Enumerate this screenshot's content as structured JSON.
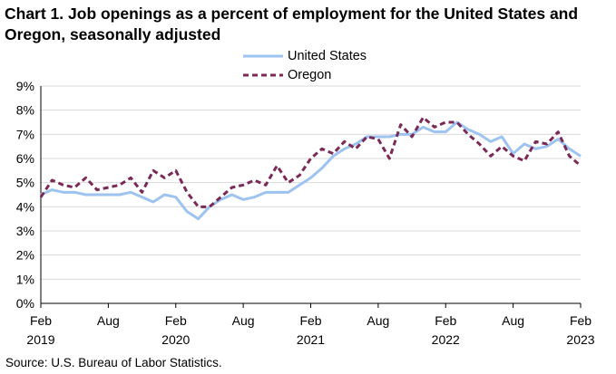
{
  "title": "Chart 1. Job openings as a percent of employment for the United States and Oregon, seasonally adjusted",
  "source": "Source: U.S. Bureau of Labor Statistics.",
  "colors": {
    "us": "#9dc3f0",
    "oregon": "#7b2956",
    "grid": "#d9d9d9",
    "axis": "#000000"
  },
  "chart_data": {
    "type": "line",
    "title": "Chart 1. Job openings as a percent of employment for the United States and Oregon, seasonally adjusted",
    "xlabel": "",
    "ylabel": "",
    "ylim": [
      0,
      9
    ],
    "grid": true,
    "legend_position": "top-center",
    "y_ticks": [
      "0%",
      "1%",
      "2%",
      "3%",
      "4%",
      "5%",
      "6%",
      "7%",
      "8%",
      "9%"
    ],
    "x_ticks": [
      {
        "month": "Feb",
        "year": "2019",
        "index": 0
      },
      {
        "month": "Aug",
        "year": "",
        "index": 6
      },
      {
        "month": "Feb",
        "year": "2020",
        "index": 12
      },
      {
        "month": "Aug",
        "year": "",
        "index": 18
      },
      {
        "month": "Feb",
        "year": "2021",
        "index": 24
      },
      {
        "month": "Aug",
        "year": "",
        "index": 30
      },
      {
        "month": "Feb",
        "year": "2022",
        "index": 36
      },
      {
        "month": "Aug",
        "year": "",
        "index": 42
      },
      {
        "month": "Feb",
        "year": "2023",
        "index": 48
      }
    ],
    "x_range": [
      0,
      48
    ],
    "series": [
      {
        "name": "United States",
        "style": "solid",
        "values": [
          4.5,
          4.7,
          4.6,
          4.6,
          4.5,
          4.5,
          4.5,
          4.5,
          4.6,
          4.4,
          4.2,
          4.5,
          4.4,
          3.8,
          3.5,
          4.0,
          4.3,
          4.5,
          4.3,
          4.4,
          4.6,
          4.6,
          4.6,
          4.9,
          5.2,
          5.6,
          6.1,
          6.4,
          6.6,
          6.9,
          6.9,
          6.9,
          7.0,
          7.0,
          7.3,
          7.1,
          7.1,
          7.5,
          7.2,
          7.0,
          6.7,
          6.9,
          6.2,
          6.6,
          6.4,
          6.5,
          6.8,
          6.4,
          6.1
        ]
      },
      {
        "name": "Oregon",
        "style": "dashed",
        "values": [
          4.4,
          5.1,
          4.9,
          4.8,
          5.2,
          4.7,
          4.8,
          4.9,
          5.2,
          4.6,
          5.5,
          5.2,
          5.5,
          4.6,
          4.0,
          4.0,
          4.4,
          4.8,
          4.9,
          5.1,
          4.9,
          5.7,
          5.0,
          5.3,
          6.0,
          6.4,
          6.2,
          6.7,
          6.4,
          6.9,
          6.8,
          6.0,
          7.4,
          6.9,
          7.7,
          7.3,
          7.5,
          7.5,
          7.0,
          6.6,
          6.1,
          6.5,
          6.1,
          5.9,
          6.7,
          6.6,
          7.1,
          6.1,
          5.7
        ]
      }
    ]
  }
}
